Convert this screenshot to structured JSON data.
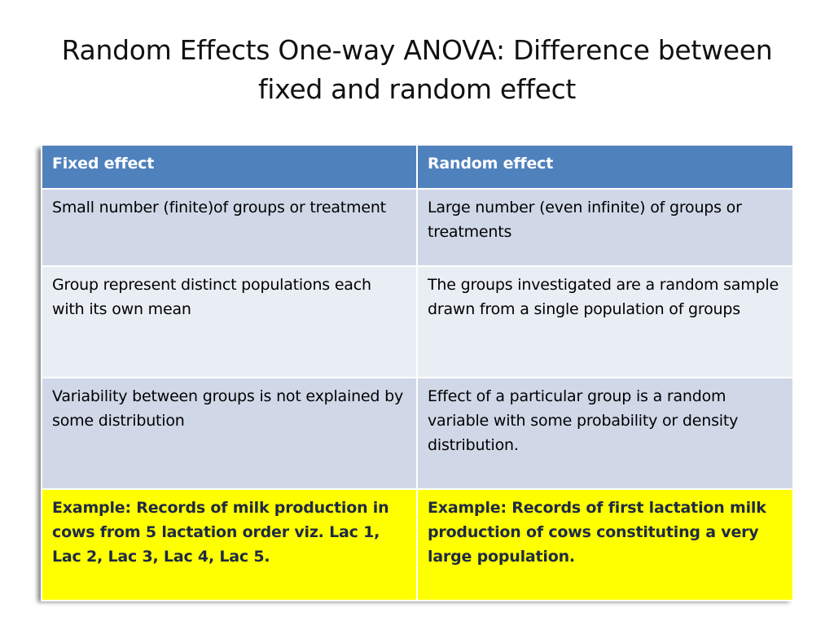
{
  "slide": {
    "title_line1": "Random Effects One-way ANOVA: Difference between",
    "title_line2": "fixed and random effect"
  },
  "table": {
    "headers": [
      "Fixed effect",
      "Random effect"
    ],
    "rows": [
      [
        "Small number (finite)of groups or treatment",
        "Large number (even infinite) of groups or treatments"
      ],
      [
        "Group represent distinct populations each with its own mean",
        "The groups investigated are a random sample drawn from a single population of groups"
      ],
      [
        "Variability between groups is not explained by some distribution",
        "Effect of a particular group is a random variable with some probability or density distribution."
      ],
      [
        "Example: Records of milk production in cows from 5 lactation order viz. Lac 1, Lac 2, Lac 3, Lac 4, Lac 5.",
        "Example: Records of  first  lactation milk production of cows constituting a very large population."
      ]
    ]
  },
  "colors": {
    "header_bg": "#4f81bd",
    "row_dark": "#d0d8e8",
    "row_light": "#e9edf4",
    "highlight": "#ffff00"
  }
}
